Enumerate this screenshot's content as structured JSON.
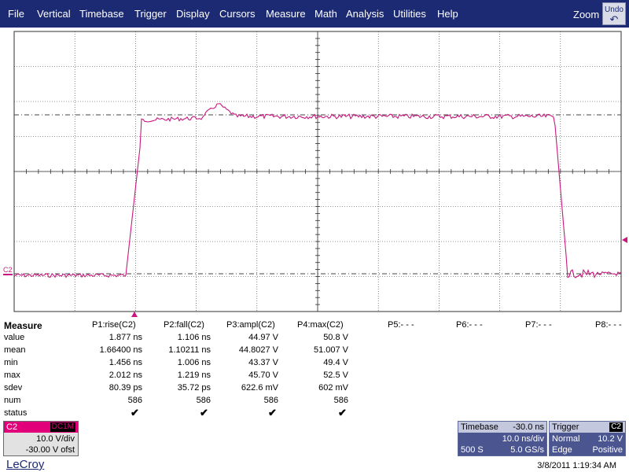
{
  "menu": {
    "items": [
      "File",
      "Vertical",
      "Timebase",
      "Trigger",
      "Display",
      "Cursors",
      "Measure",
      "Math",
      "Analysis",
      "Utilities",
      "Help"
    ],
    "zoom_label": "Zoom",
    "undo_label": "Undo"
  },
  "scope": {
    "channel_marker": "C2",
    "trace_color": "#c8177e",
    "grid_color": "#303030"
  },
  "measure": {
    "title": "Measure",
    "columns": [
      "P1:rise(C2)",
      "P2:fall(C2)",
      "P3:ampl(C2)",
      "P4:max(C2)",
      "P5:- - -",
      "P6:- - -",
      "P7:- - -",
      "P8:- - -"
    ],
    "rows": [
      {
        "label": "value",
        "cells": [
          "1.877 ns",
          "1.106 ns",
          "44.97 V",
          "50.8 V"
        ]
      },
      {
        "label": "mean",
        "cells": [
          "1.66400 ns",
          "1.10211 ns",
          "44.8027 V",
          "51.007 V"
        ]
      },
      {
        "label": "min",
        "cells": [
          "1.456 ns",
          "1.006 ns",
          "43.37 V",
          "49.4 V"
        ]
      },
      {
        "label": "max",
        "cells": [
          "2.012 ns",
          "1.219 ns",
          "45.70 V",
          "52.5 V"
        ]
      },
      {
        "label": "sdev",
        "cells": [
          "80.39 ps",
          "35.72 ps",
          "622.6 mV",
          "602 mV"
        ]
      },
      {
        "label": "num",
        "cells": [
          "586",
          "586",
          "586",
          "586"
        ]
      },
      {
        "label": "status",
        "cells": [
          "✔",
          "✔",
          "✔",
          "✔"
        ]
      }
    ]
  },
  "channel": {
    "name": "C2",
    "coupling": "DC1M",
    "vdiv": "10.0 V/div",
    "offset": "-30.00 V ofst"
  },
  "timebase": {
    "title": "Timebase",
    "delay": "-30.0 ns",
    "tdiv": "10.0 ns/div",
    "samples": "500 S",
    "rate": "5.0 GS/s"
  },
  "trigger": {
    "title": "Trigger",
    "channel": "C2",
    "mode": "Normal",
    "level": "10.2 V",
    "type": "Edge",
    "slope": "Positive"
  },
  "footer": {
    "logo": "LeCroy",
    "datetime": "3/8/2011 1:19:34 AM"
  }
}
